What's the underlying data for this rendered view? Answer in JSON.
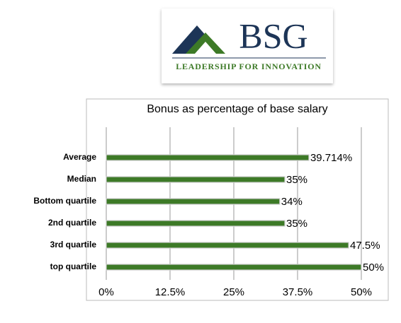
{
  "logo": {
    "name": "BSG",
    "tagline": "LEADERSHIP FOR INNOVATION"
  },
  "chart_data": {
    "type": "bar",
    "orientation": "horizontal",
    "title": "Bonus as percentage of base salary",
    "categories": [
      "Average",
      "Median",
      "Bottom quartile",
      "2nd quartile",
      "3rd quartile",
      "top quartile"
    ],
    "values": [
      39.714,
      35,
      34,
      35,
      47.5,
      50
    ],
    "value_labels": [
      "39.714%",
      "35%",
      "34%",
      "35%",
      "47.5%",
      "50%"
    ],
    "color": "#3d7a27",
    "xlim": [
      0,
      50
    ],
    "xticks": [
      {
        "value": 0,
        "label": "0%"
      },
      {
        "value": 12.5,
        "label": "12.5%"
      },
      {
        "value": 25,
        "label": "25%"
      },
      {
        "value": 37.5,
        "label": "37.5%"
      },
      {
        "value": 50,
        "label": "50%"
      }
    ],
    "grid": true
  }
}
